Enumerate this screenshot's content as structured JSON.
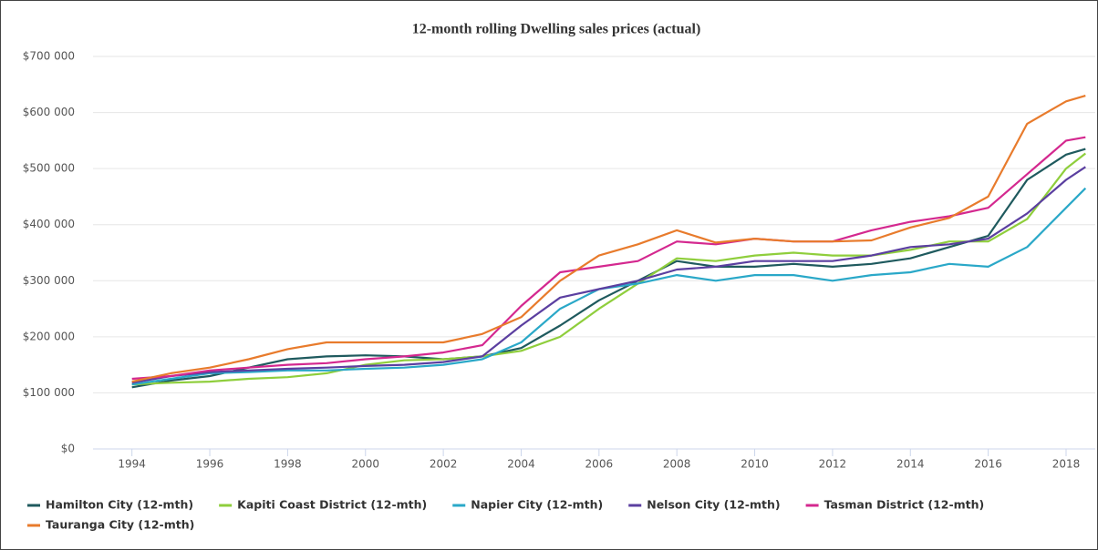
{
  "chart_data": {
    "type": "line",
    "title": "12-month rolling Dwelling sales prices (actual)",
    "x": [
      1994,
      1995,
      1996,
      1997,
      1998,
      1999,
      2000,
      2001,
      2002,
      2003,
      2004,
      2005,
      2006,
      2007,
      2008,
      2009,
      2010,
      2011,
      2012,
      2013,
      2014,
      2015,
      2016,
      2017,
      2018,
      2018.5
    ],
    "series": [
      {
        "name": "Hamilton City (12-mth)",
        "color": "#1f5a5e",
        "values": [
          110000,
          122000,
          130000,
          145000,
          160000,
          165000,
          167000,
          165000,
          160000,
          165000,
          180000,
          220000,
          265000,
          300000,
          335000,
          325000,
          325000,
          330000,
          325000,
          330000,
          340000,
          360000,
          380000,
          480000,
          525000,
          535000
        ]
      },
      {
        "name": "Kapiti Coast District (12-mth)",
        "color": "#8fce3c",
        "values": [
          115000,
          118000,
          120000,
          125000,
          128000,
          135000,
          150000,
          158000,
          160000,
          165000,
          175000,
          200000,
          250000,
          295000,
          340000,
          335000,
          345000,
          350000,
          345000,
          345000,
          355000,
          370000,
          370000,
          410000,
          500000,
          527000
        ]
      },
      {
        "name": "Napier City (12-mth)",
        "color": "#2aa8c8",
        "values": [
          115000,
          125000,
          135000,
          137000,
          140000,
          140000,
          143000,
          145000,
          150000,
          160000,
          190000,
          250000,
          285000,
          295000,
          310000,
          300000,
          310000,
          310000,
          300000,
          310000,
          315000,
          330000,
          325000,
          360000,
          430000,
          465000
        ]
      },
      {
        "name": "Nelson City (12-mth)",
        "color": "#5b3fa0",
        "values": [
          118000,
          130000,
          137000,
          140000,
          143000,
          145000,
          148000,
          150000,
          155000,
          165000,
          220000,
          270000,
          285000,
          300000,
          320000,
          325000,
          335000,
          335000,
          335000,
          345000,
          360000,
          365000,
          375000,
          420000,
          480000,
          503000
        ]
      },
      {
        "name": "Tasman District (12-mth)",
        "color": "#d4288f",
        "values": [
          125000,
          130000,
          140000,
          145000,
          150000,
          153000,
          160000,
          165000,
          172000,
          185000,
          255000,
          315000,
          325000,
          335000,
          370000,
          365000,
          375000,
          370000,
          370000,
          390000,
          405000,
          415000,
          430000,
          490000,
          550000,
          556000
        ]
      },
      {
        "name": "Tauranga City (12-mth)",
        "color": "#e87b2c",
        "values": [
          120000,
          135000,
          145000,
          160000,
          178000,
          190000,
          190000,
          190000,
          190000,
          205000,
          235000,
          300000,
          345000,
          365000,
          390000,
          368000,
          375000,
          370000,
          370000,
          372000,
          395000,
          412000,
          450000,
          580000,
          620000,
          630000
        ]
      }
    ],
    "xlim": [
      1993,
      2018.75
    ],
    "xticks": [
      1994,
      1996,
      1998,
      2000,
      2002,
      2004,
      2006,
      2008,
      2010,
      2012,
      2014,
      2016,
      2018
    ],
    "ylim": [
      0,
      700000
    ],
    "yticks": [
      {
        "value": 0,
        "label": "$0"
      },
      {
        "value": 100000,
        "label": "$100 000"
      },
      {
        "value": 200000,
        "label": "$200 000"
      },
      {
        "value": 300000,
        "label": "$300 000"
      },
      {
        "value": 400000,
        "label": "$400 000"
      },
      {
        "value": 500000,
        "label": "$500 000"
      },
      {
        "value": 600000,
        "label": "$600 000"
      },
      {
        "value": 700000,
        "label": "$700 000"
      }
    ],
    "grid": true
  }
}
